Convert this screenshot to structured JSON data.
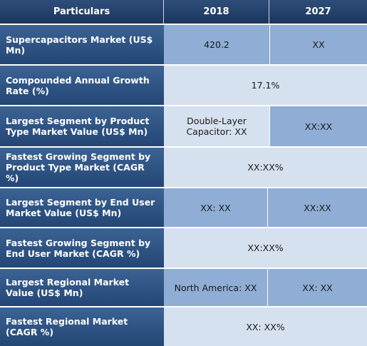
{
  "header": {
    "particulars": "Particulars",
    "col1": "2018",
    "col2": "2027"
  },
  "rows": [
    {
      "label": "Supercapacitors Market (US$ Mn)",
      "v2018": "420.2",
      "v2027": "XX"
    },
    {
      "label": "Compounded Annual Growth Rate (%)",
      "merged": "17.1%"
    },
    {
      "label": "Largest Segment by Product Type Market Value (US$ Mn)",
      "v2018": "Double-Layer Capacitor: XX",
      "v2027": "XX:XX"
    },
    {
      "label": "Fastest Growing Segment by Product Type Market (CAGR %)",
      "merged": "XX:XX%"
    },
    {
      "label": "Largest Segment by End User Market Value (US$ Mn)",
      "v2018": "XX: XX",
      "v2027": "XX:XX"
    },
    {
      "label": "Fastest Growing Segment by End User Market (CAGR %)",
      "merged": "XX:XX%"
    },
    {
      "label": "Largest Regional Market Value (US$ Mn)",
      "v2018": "North America: XX",
      "v2027": "XX: XX"
    },
    {
      "label": "Fastest Regional Market (CAGR %)",
      "merged": "XX: XX%"
    }
  ],
  "colors": {
    "header_bg": "#1b365d",
    "label_bg": "#2c4f80",
    "value_dark": "#8fadd5",
    "value_light": "#d6e1ef"
  }
}
